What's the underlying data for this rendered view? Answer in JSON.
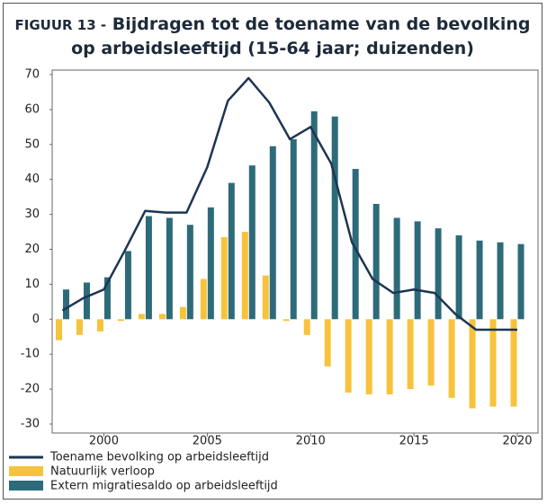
{
  "chart_data": {
    "type": "bar",
    "figure_label": "FIGUUR 13 -",
    "title": "Bijdragen tot de toename van de bevolking op arbeidsleeftijd (15-64 jaar; duizenden)",
    "x": [
      1998,
      1999,
      2000,
      2001,
      2002,
      2003,
      2004,
      2005,
      2006,
      2007,
      2008,
      2009,
      2010,
      2011,
      2012,
      2013,
      2014,
      2015,
      2016,
      2017,
      2018,
      2019,
      2020
    ],
    "series": [
      {
        "name": "Toename bevolking op arbeidsleeftijd",
        "type": "line",
        "color": "#1d3553",
        "values": [
          2.5,
          6,
          8.5,
          19.5,
          31,
          30.5,
          30.5,
          43.5,
          62.5,
          69,
          62,
          51.5,
          55,
          44.5,
          22,
          11.5,
          7.5,
          8.5,
          7.5,
          1.5,
          -3,
          -3,
          -3
        ]
      },
      {
        "name": "Natuurlijk verloop",
        "type": "bar",
        "color": "#f7c33c",
        "values": [
          -6,
          -4.5,
          -3.5,
          -0.5,
          1.5,
          1.5,
          3.5,
          11.5,
          23.5,
          25,
          12.5,
          -0.5,
          -4.5,
          -13.5,
          -21,
          -21.5,
          -21.5,
          -20,
          -19,
          -22.5,
          -25.5,
          -25,
          -25
        ]
      },
      {
        "name": "Extern migratiesaldo op arbeidsleeftijd",
        "type": "bar",
        "color": "#2e6b7a",
        "values": [
          8.5,
          10.5,
          12,
          19.5,
          29.5,
          29,
          27,
          32,
          39,
          44,
          49.5,
          51.5,
          59.5,
          58,
          43,
          33,
          29,
          28,
          26,
          24,
          22.5,
          22,
          21.5
        ]
      }
    ],
    "xlim": [
      1997.5,
      2021
    ],
    "xticks": [
      2000,
      2005,
      2010,
      2015,
      2020
    ],
    "ylim": [
      -30,
      70
    ],
    "yticks": [
      -30,
      -20,
      -10,
      0,
      10,
      20,
      30,
      40,
      50,
      60,
      70
    ]
  }
}
